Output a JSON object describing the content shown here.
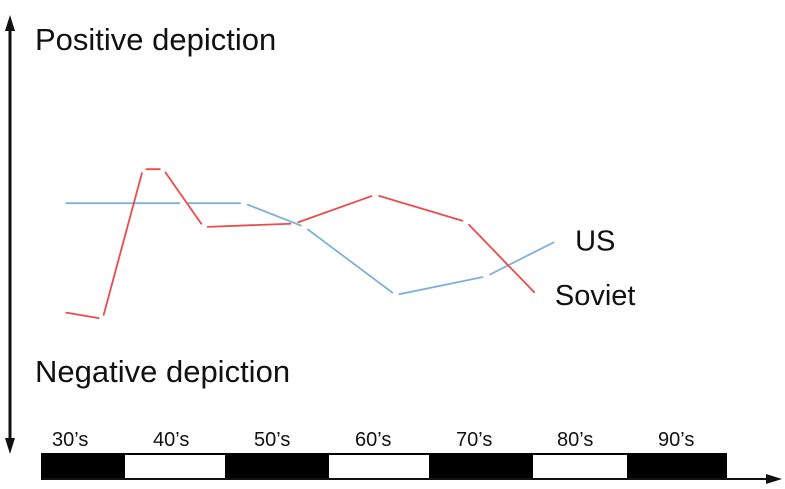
{
  "chart_data": {
    "type": "line",
    "title": "",
    "ylabel_top": "Positive depiction",
    "ylabel_bottom": "Negative depiction",
    "x": [
      "30’s",
      "40’s",
      "50’s",
      "60’s",
      "70’s",
      "80’s",
      "90’s"
    ],
    "ylim": [
      0,
      10
    ],
    "grid": false,
    "timeline_bar": [
      "black",
      "white",
      "black",
      "white",
      "black",
      "white",
      "black"
    ],
    "series": [
      {
        "name": "US",
        "color": "#7fb0dc",
        "points": [
          [
            0.2,
            6.4
          ],
          [
            1.4,
            6.4
          ],
          [
            2.0,
            6.4
          ],
          [
            2.6,
            5.0
          ],
          [
            3.5,
            1.0
          ],
          [
            4.4,
            2.1
          ],
          [
            5.1,
            4.2
          ]
        ]
      },
      {
        "name": "Soviet",
        "color": "#ef4a4a",
        "points": [
          [
            0.2,
            0.0
          ],
          [
            0.6,
            -0.4
          ],
          [
            1.0,
            8.4
          ],
          [
            1.2,
            8.4
          ],
          [
            1.6,
            5.0
          ],
          [
            2.5,
            5.2
          ],
          [
            3.3,
            6.9
          ],
          [
            4.2,
            5.3
          ],
          [
            4.9,
            1.0
          ]
        ]
      }
    ]
  }
}
